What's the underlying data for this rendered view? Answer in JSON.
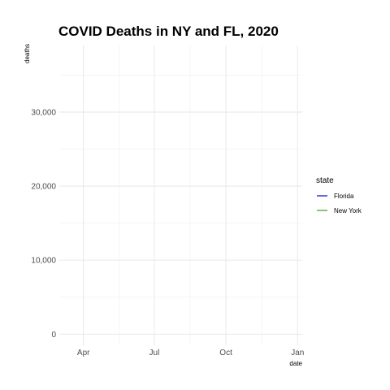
{
  "chart_data": {
    "type": "line",
    "title": "COVID Deaths in NY and FL, 2020",
    "xlabel": "date",
    "ylabel": "deaths",
    "x_ticks": [
      "Apr",
      "Jul",
      "Oct",
      "Jan"
    ],
    "x_tick_dates": [
      "2020-04-01",
      "2020-07-01",
      "2020-10-01",
      "2021-01-01"
    ],
    "xlim": [
      "2020-03-01",
      "2021-01-07"
    ],
    "y_ticks": [
      0,
      10000,
      20000,
      30000
    ],
    "y_tick_labels": [
      "0",
      "10,000",
      "20,000",
      "30,000"
    ],
    "ylim": [
      -1500,
      39000
    ],
    "grid": true,
    "legend": {
      "title": "state",
      "position": "right"
    },
    "series": [
      {
        "name": "Florida",
        "color": "#0000cc",
        "values": []
      },
      {
        "name": "New York",
        "color": "#3a9a2a",
        "values": []
      }
    ]
  }
}
